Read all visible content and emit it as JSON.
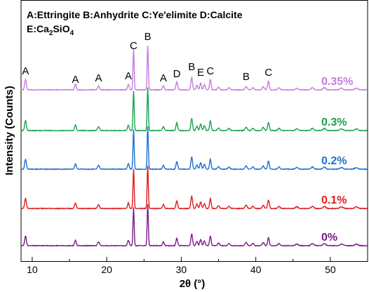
{
  "chart_data": {
    "type": "line",
    "xlabel": "2θ (°)",
    "ylabel": "Intensity (Counts)",
    "xlim": [
      8.5,
      55
    ],
    "xticks": [
      10,
      20,
      30,
      40,
      50
    ],
    "grid": false,
    "legend_position": "top-left",
    "legend_lines": [
      "A:Ettringite  B:Anhydrite  C:Ye'elimite D:Calcite",
      "E:Ca2SiO4"
    ],
    "peak_labels": [
      {
        "text": "A",
        "x": 9.1
      },
      {
        "text": "A",
        "x": 15.8
      },
      {
        "text": "A",
        "x": 18.9
      },
      {
        "text": "A",
        "x": 22.9
      },
      {
        "text": "C",
        "x": 23.6
      },
      {
        "text": "B",
        "x": 25.5
      },
      {
        "text": "A",
        "x": 27.6
      },
      {
        "text": "D",
        "x": 29.4
      },
      {
        "text": "B",
        "x": 31.4
      },
      {
        "text": "E",
        "x": 32.6
      },
      {
        "text": "C",
        "x": 33.9
      },
      {
        "text": "B",
        "x": 38.7
      },
      {
        "text": "C",
        "x": 41.7
      }
    ],
    "peaks": [
      {
        "x": 9.1,
        "rel": 0.18,
        "w": 0.16
      },
      {
        "x": 15.8,
        "rel": 0.1,
        "w": 0.16
      },
      {
        "x": 18.9,
        "rel": 0.07,
        "w": 0.18
      },
      {
        "x": 22.9,
        "rel": 0.1,
        "w": 0.16
      },
      {
        "x": 23.6,
        "rel": 0.72,
        "w": 0.11
      },
      {
        "x": 25.5,
        "rel": 0.78,
        "w": 0.11
      },
      {
        "x": 27.6,
        "rel": 0.07,
        "w": 0.16
      },
      {
        "x": 29.4,
        "rel": 0.14,
        "w": 0.16
      },
      {
        "x": 31.4,
        "rel": 0.22,
        "w": 0.16
      },
      {
        "x": 32.1,
        "rel": 0.08,
        "w": 0.16
      },
      {
        "x": 32.6,
        "rel": 0.12,
        "w": 0.16
      },
      {
        "x": 33.1,
        "rel": 0.09,
        "w": 0.16
      },
      {
        "x": 33.9,
        "rel": 0.18,
        "w": 0.15
      },
      {
        "x": 35.0,
        "rel": 0.05,
        "w": 0.18
      },
      {
        "x": 36.4,
        "rel": 0.04,
        "w": 0.2
      },
      {
        "x": 38.7,
        "rel": 0.06,
        "w": 0.2
      },
      {
        "x": 39.6,
        "rel": 0.04,
        "w": 0.2
      },
      {
        "x": 41.0,
        "rel": 0.06,
        "w": 0.18
      },
      {
        "x": 41.7,
        "rel": 0.15,
        "w": 0.16
      },
      {
        "x": 43.1,
        "rel": 0.04,
        "w": 0.2
      },
      {
        "x": 45.5,
        "rel": 0.03,
        "w": 0.25
      },
      {
        "x": 47.6,
        "rel": 0.04,
        "w": 0.25
      },
      {
        "x": 49.2,
        "rel": 0.04,
        "w": 0.25
      },
      {
        "x": 51.5,
        "rel": 0.03,
        "w": 0.3
      },
      {
        "x": 53.5,
        "rel": 0.03,
        "w": 0.3
      }
    ],
    "series": [
      {
        "name": "0.35%",
        "color": "#c77be0",
        "scale": 1.0
      },
      {
        "name": "0.3%",
        "color": "#1aa251",
        "scale": 0.98
      },
      {
        "name": "0.2%",
        "color": "#1f6fd1",
        "scale": 0.98
      },
      {
        "name": "0.1%",
        "color": "#e11a1a",
        "scale": 0.98
      },
      {
        "name": "0%",
        "color": "#7a1d87",
        "scale": 0.95
      }
    ]
  }
}
